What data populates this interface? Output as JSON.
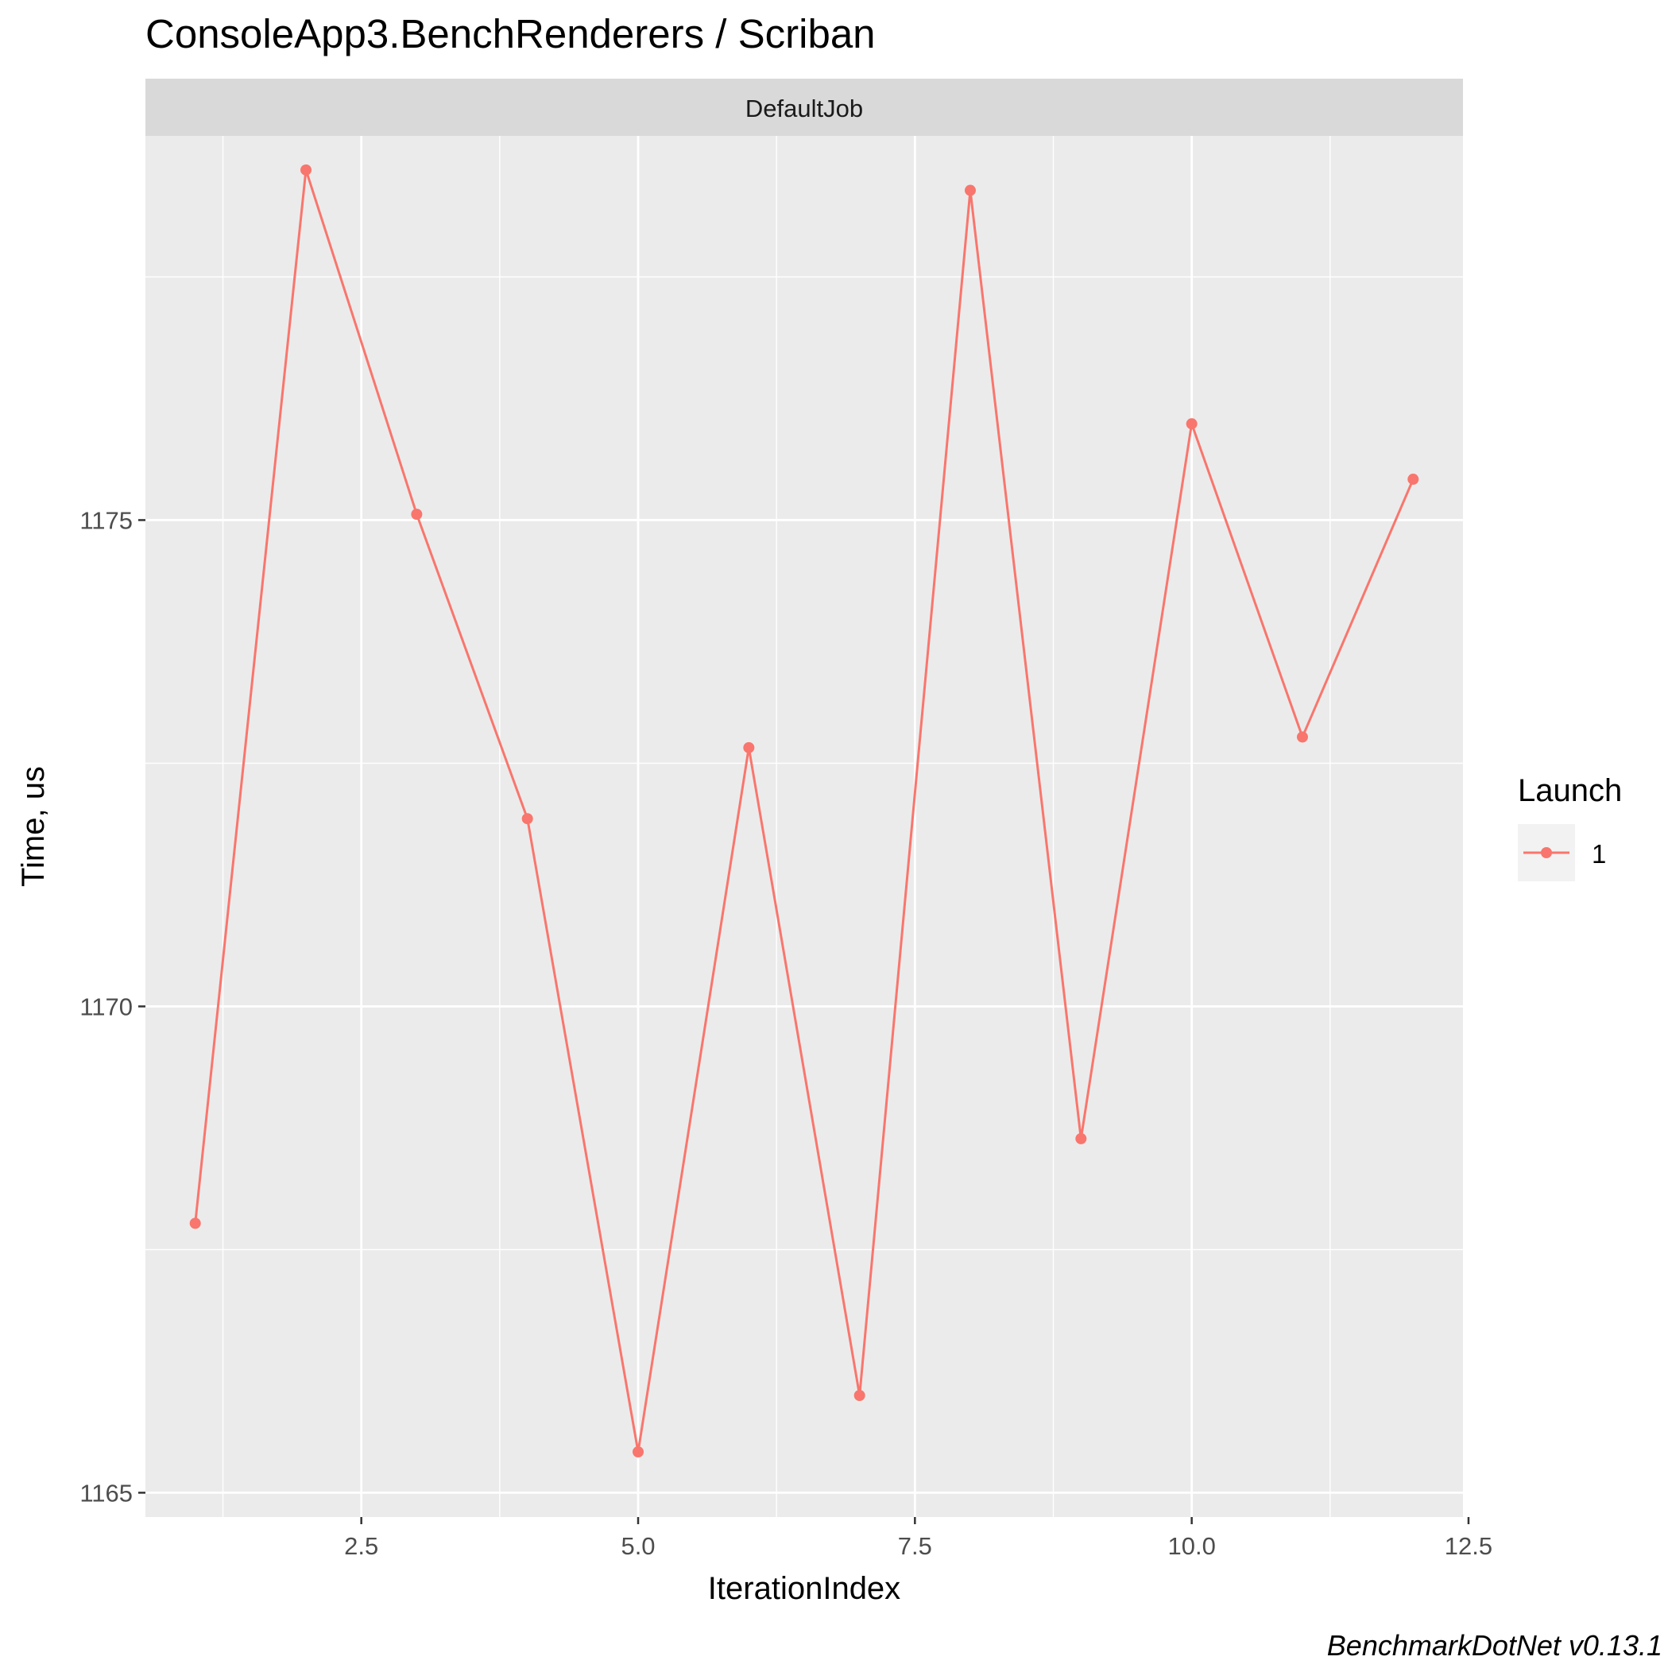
{
  "chart_data": {
    "type": "line",
    "title": "ConsoleApp3.BenchRenderers / Scriban",
    "facet_label": "DefaultJob",
    "xlabel": "IterationIndex",
    "ylabel": "Time, us",
    "caption": "BenchmarkDotNet v0.13.1",
    "xlim": [
      0.55,
      12.45
    ],
    "ylim": [
      1164.75,
      1178.95
    ],
    "x_ticks": [
      2.5,
      5.0,
      7.5,
      10.0,
      12.5
    ],
    "x_tick_labels": [
      "2.5",
      "5.0",
      "7.5",
      "10.0",
      "12.5"
    ],
    "y_ticks": [
      1165,
      1170,
      1175
    ],
    "y_tick_labels": [
      "1165",
      "1170",
      "1175"
    ],
    "grid": true,
    "legend": {
      "title": "Launch",
      "position": "right",
      "entries": [
        "1"
      ]
    },
    "series": [
      {
        "name": "1",
        "color": "#F8766D",
        "x": [
          1,
          2,
          3,
          4,
          5,
          6,
          7,
          8,
          9,
          10,
          11,
          12
        ],
        "y": [
          1167.77,
          1178.6,
          1175.06,
          1171.93,
          1165.42,
          1172.66,
          1166.0,
          1178.39,
          1168.64,
          1175.99,
          1172.77,
          1175.42
        ]
      }
    ]
  }
}
